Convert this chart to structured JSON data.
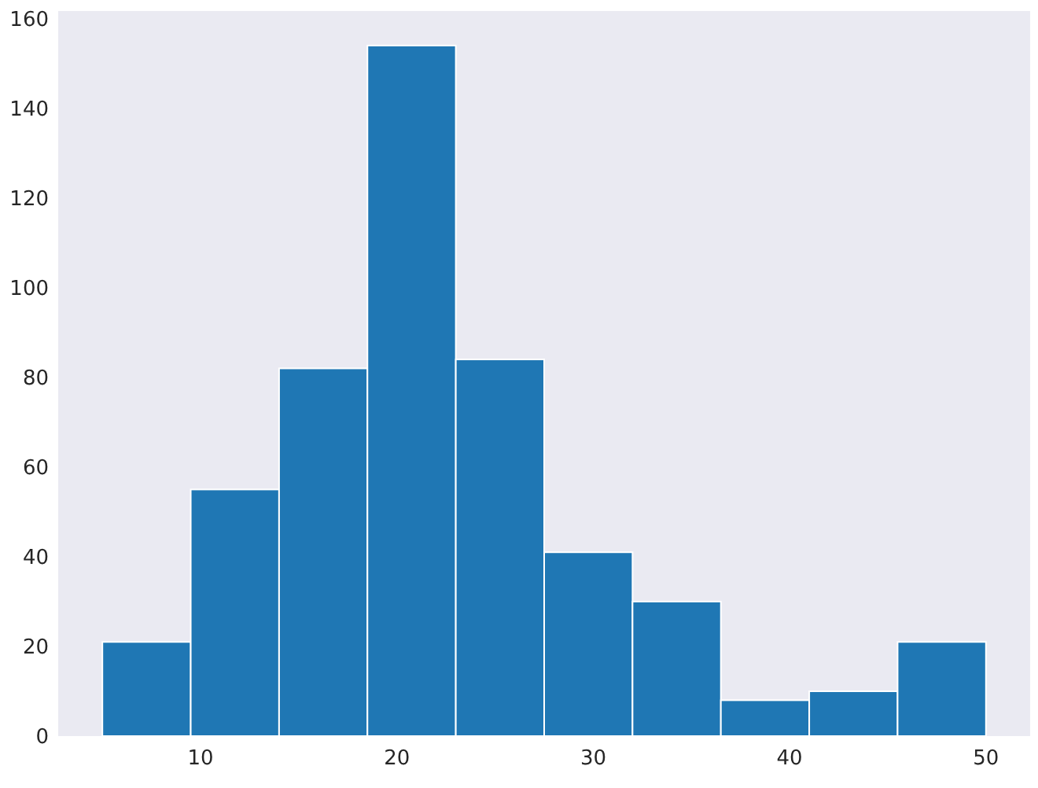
{
  "chart_data": {
    "type": "histogram",
    "bins": [
      5,
      9.5,
      14,
      18.5,
      23,
      27.5,
      32,
      36.5,
      41,
      45.5,
      50
    ],
    "values": [
      21,
      55,
      82,
      154,
      84,
      41,
      30,
      8,
      10,
      21
    ],
    "color": "#1f77b4",
    "xlim": [
      2.75,
      52.25
    ],
    "ylim": [
      0,
      161.7
    ],
    "xticks": [
      10,
      20,
      30,
      40,
      50
    ],
    "yticks": [
      0,
      20,
      40,
      60,
      80,
      100,
      120,
      140,
      160
    ]
  }
}
